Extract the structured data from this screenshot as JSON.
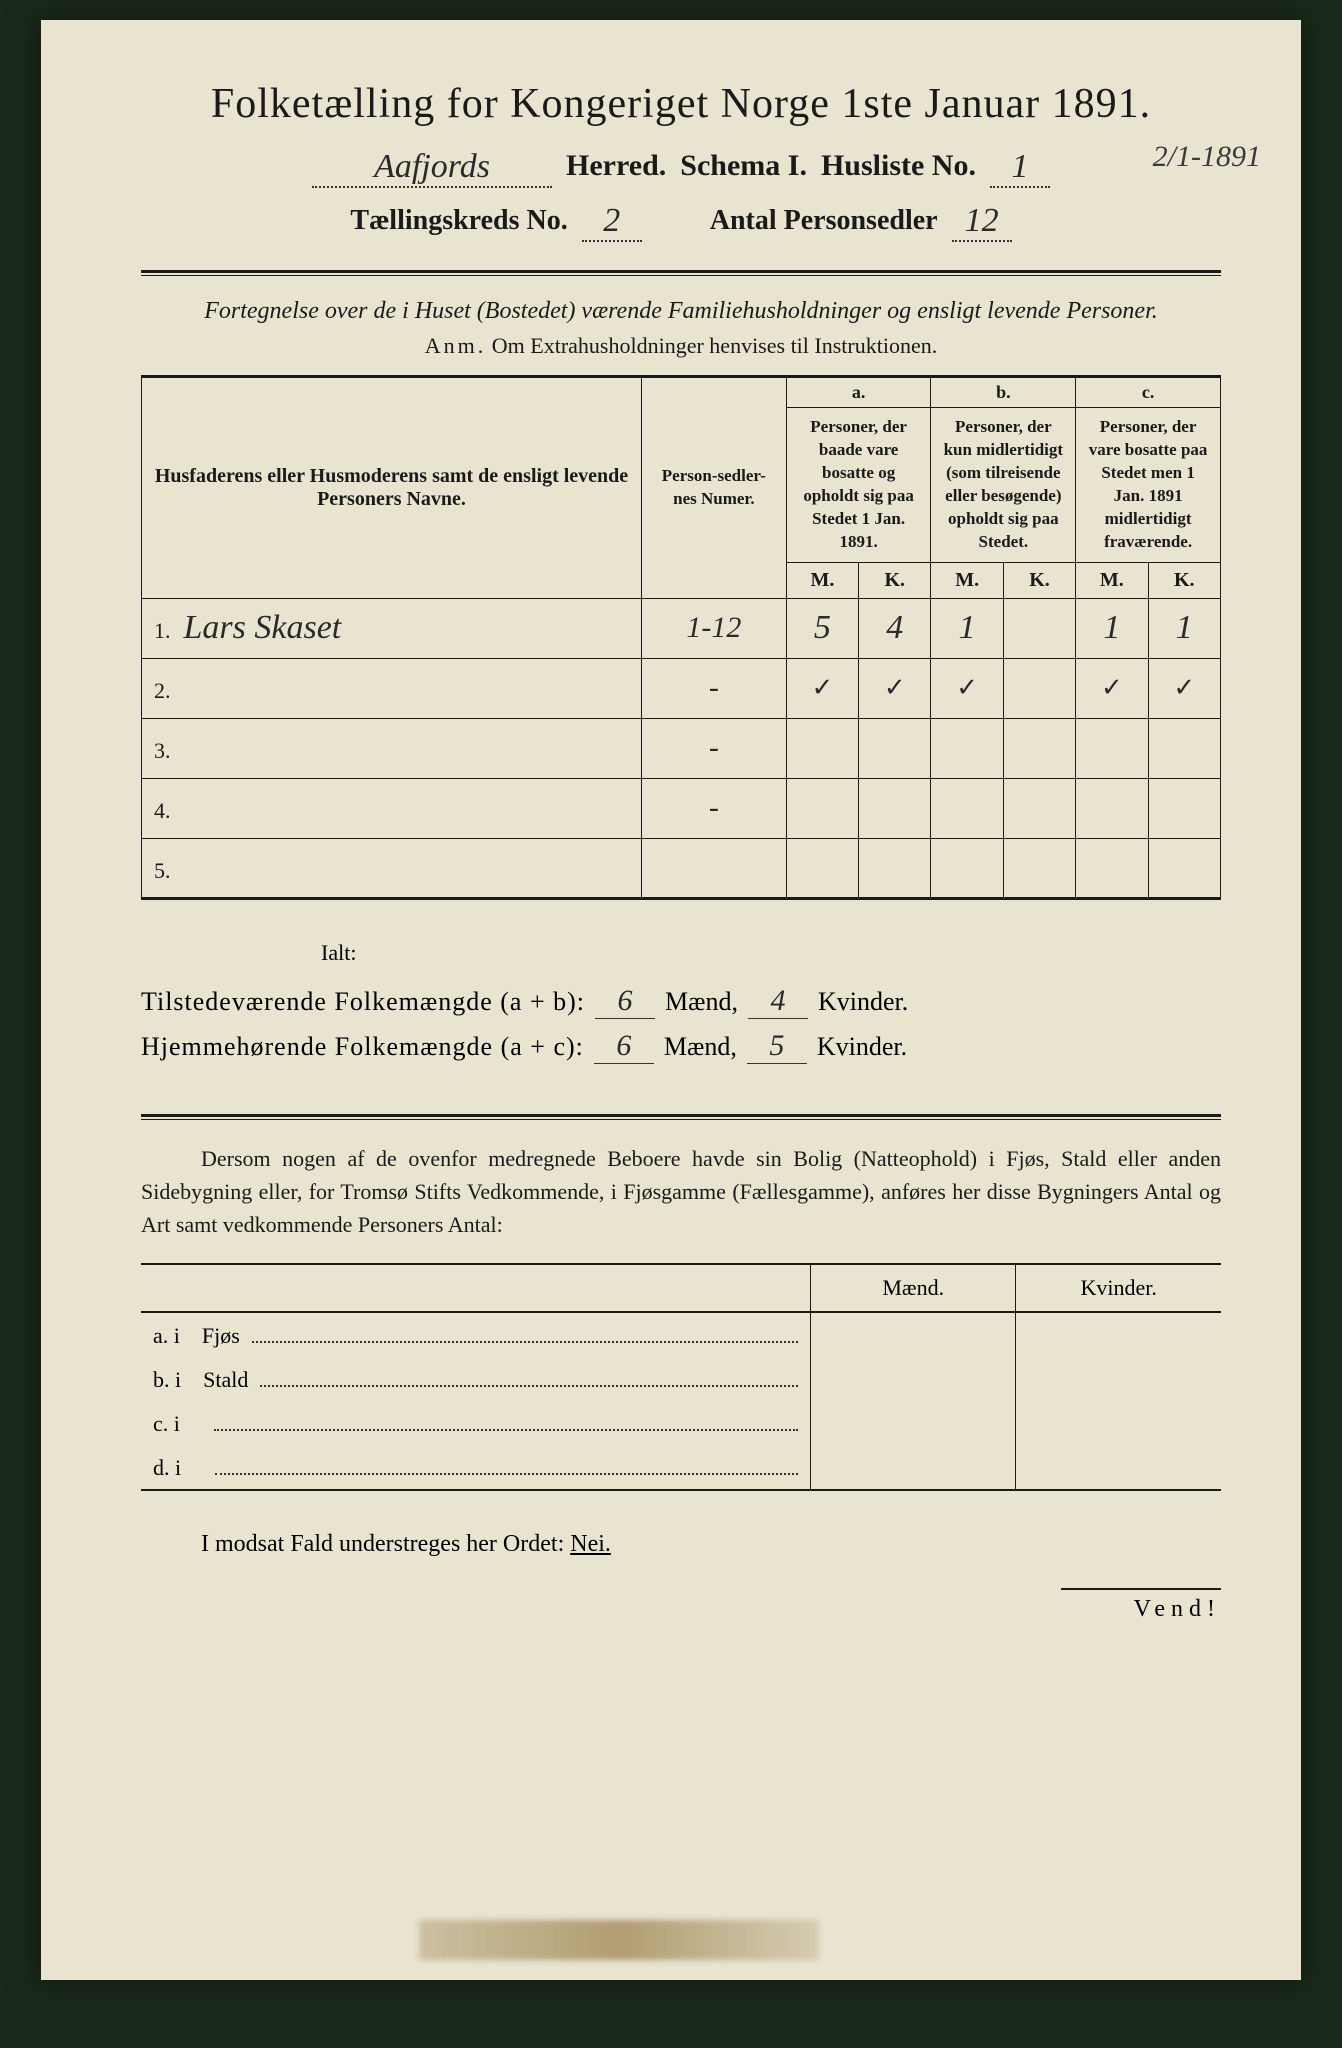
{
  "header": {
    "title": "Folketælling for Kongeriget Norge 1ste Januar 1891.",
    "herred_value": "Aafjords",
    "herred_label": "Herred.",
    "schema_label": "Schema I.",
    "husliste_label": "Husliste No.",
    "husliste_value": "1",
    "date_note": "2/1-1891",
    "kreds_label": "Tællingskreds No.",
    "kreds_value": "2",
    "antal_label": "Antal Personsedler",
    "antal_value": "12"
  },
  "subtitle": "Fortegnelse over de i Huset (Bostedet) værende Familiehusholdninger og ensligt levende Personer.",
  "anm_lead": "Anm.",
  "anm_text": "Om Extrahusholdninger henvises til Instruktionen.",
  "columns": {
    "name_header": "Husfaderens eller Husmoderens samt de ensligt levende Personers Navne.",
    "number_header": "Person-sedler-nes Numer.",
    "a_label": "a.",
    "a_desc": "Personer, der baade vare bosatte og opholdt sig paa Stedet 1 Jan. 1891.",
    "b_label": "b.",
    "b_desc": "Personer, der kun midlertidigt (som tilreisende eller besøgende) opholdt sig paa Stedet.",
    "c_label": "c.",
    "c_desc": "Personer, der vare bosatte paa Stedet men 1 Jan. 1891 midlertidigt fraværende.",
    "m": "M.",
    "k": "K."
  },
  "rows": [
    {
      "n": "1.",
      "name": "Lars Skaset",
      "num": "1-12",
      "aM": "5",
      "aK": "4",
      "bM": "1",
      "bK": "",
      "cM": "1",
      "cK": "1"
    },
    {
      "n": "2.",
      "name": "",
      "num": "-",
      "aM": "✓",
      "aK": "✓",
      "bM": "✓",
      "bK": "",
      "cM": "✓",
      "cK": "✓"
    },
    {
      "n": "3.",
      "name": "",
      "num": "-",
      "aM": "",
      "aK": "",
      "bM": "",
      "bK": "",
      "cM": "",
      "cK": ""
    },
    {
      "n": "4.",
      "name": "",
      "num": "-",
      "aM": "",
      "aK": "",
      "bM": "",
      "bK": "",
      "cM": "",
      "cK": ""
    },
    {
      "n": "5.",
      "name": "",
      "num": "",
      "aM": "",
      "aK": "",
      "bM": "",
      "bK": "",
      "cM": "",
      "cK": ""
    }
  ],
  "totals": {
    "ialt": "Ialt:",
    "row1_label": "Tilstedeværende Folkemængde (a + b):",
    "row1_m": "6",
    "row1_k": "4",
    "row2_label": "Hjemmehørende Folkemængde (a + c):",
    "row2_m": "6",
    "row2_k": "5",
    "maend": "Mænd,",
    "kvinder": "Kvinder."
  },
  "paragraph": "Dersom nogen af de ovenfor medregnede Beboere havde sin Bolig (Natteophold) i Fjøs, Stald eller anden Sidebygning eller, for Tromsø Stifts Vedkommende, i Fjøsgamme (Fællesgamme), anføres her disse Bygningers Antal og Art samt vedkommende Personers Antal:",
  "side_table": {
    "maend": "Mænd.",
    "kvinder": "Kvinder.",
    "rows": [
      {
        "key": "a.  i",
        "label": "Fjøs"
      },
      {
        "key": "b.  i",
        "label": "Stald"
      },
      {
        "key": "c.  i",
        "label": ""
      },
      {
        "key": "d.  i",
        "label": ""
      }
    ]
  },
  "nei_line_pre": "I modsat Fald understreges her Ordet: ",
  "nei_word": "Nei.",
  "vend": "Vend!",
  "colors": {
    "paper": "#e8e4d0",
    "ink": "#1a1a1a",
    "handwriting": "#2a2a2a",
    "background": "#1a2a1a"
  }
}
